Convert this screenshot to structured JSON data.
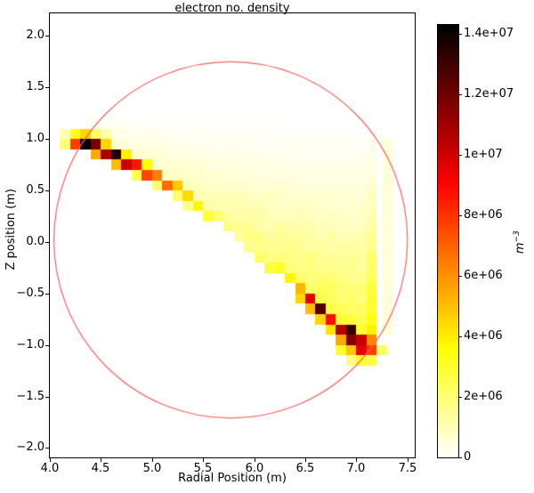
{
  "chart_data": {
    "type": "heatmap",
    "title": "electron no. density",
    "xlabel": "Radial Position (m)",
    "ylabel": "Z position (m)",
    "xlim": [
      4.0,
      7.58
    ],
    "ylim": [
      -2.1,
      2.22
    ],
    "grid": false,
    "xticks": [
      {
        "v": 4.0,
        "label": "4.0"
      },
      {
        "v": 4.5,
        "label": "4.5"
      },
      {
        "v": 5.0,
        "label": "5.0"
      },
      {
        "v": 5.5,
        "label": "5.5"
      },
      {
        "v": 6.0,
        "label": "6.0"
      },
      {
        "v": 6.5,
        "label": "6.5"
      },
      {
        "v": 7.0,
        "label": "7.0"
      },
      {
        "v": 7.5,
        "label": "7.5"
      }
    ],
    "yticks": [
      {
        "v": -2.0,
        "label": "−2.0"
      },
      {
        "v": -1.5,
        "label": "−1.5"
      },
      {
        "v": -1.0,
        "label": "−1.0"
      },
      {
        "v": -0.5,
        "label": "−0.5"
      },
      {
        "v": 0.0,
        "label": "0.0"
      },
      {
        "v": 0.5,
        "label": "0.5"
      },
      {
        "v": 1.0,
        "label": "1.0"
      },
      {
        "v": 1.5,
        "label": "1.5"
      },
      {
        "v": 2.0,
        "label": "2.0"
      }
    ],
    "colormap": "hot_r",
    "vmin": 0,
    "vmax": 14300000,
    "colorbar": {
      "ticks": [
        {
          "v": 0,
          "label": "0"
        },
        {
          "v": 2000000,
          "label": "2e+06"
        },
        {
          "v": 4000000,
          "label": "4e+06"
        },
        {
          "v": 6000000,
          "label": "6e+06"
        },
        {
          "v": 8000000,
          "label": "8e+06"
        },
        {
          "v": 10000000,
          "label": "1e+07"
        },
        {
          "v": 12000000,
          "label": "1.2e+07"
        },
        {
          "v": 14000000,
          "label": "1.4e+07"
        }
      ],
      "unit_base": "m",
      "unit_exp": "−3"
    },
    "vessel_circle": {
      "center_r": 5.77,
      "center_z": 0.02,
      "radius": 1.73,
      "color": "#f46464"
    },
    "cell_size": 0.1,
    "value_unit": 1000000,
    "beam_band_cells": [
      [
        4.15,
        1.05,
        1.1
      ],
      [
        4.25,
        1.05,
        3.2
      ],
      [
        4.35,
        1.05,
        4.5
      ],
      [
        4.45,
        1.05,
        2.2
      ],
      [
        4.55,
        1.05,
        1.2
      ],
      [
        4.15,
        0.95,
        2.0
      ],
      [
        4.25,
        0.95,
        7.8
      ],
      [
        4.35,
        0.95,
        14.2
      ],
      [
        4.45,
        0.95,
        11.8
      ],
      [
        4.55,
        0.95,
        4.5
      ],
      [
        4.45,
        0.85,
        5.5
      ],
      [
        4.55,
        0.85,
        10.8
      ],
      [
        4.65,
        0.85,
        13.6
      ],
      [
        4.75,
        0.85,
        4.0
      ],
      [
        4.65,
        0.75,
        5.0
      ],
      [
        4.75,
        0.75,
        10.2
      ],
      [
        4.85,
        0.75,
        8.6
      ],
      [
        4.95,
        0.75,
        3.5
      ],
      [
        4.85,
        0.65,
        2.5
      ],
      [
        4.95,
        0.65,
        7.6
      ],
      [
        5.05,
        0.65,
        6.4
      ],
      [
        5.05,
        0.55,
        2.0
      ],
      [
        5.15,
        0.55,
        6.8
      ],
      [
        5.25,
        0.55,
        4.8
      ],
      [
        5.25,
        0.45,
        2.0
      ],
      [
        5.35,
        0.45,
        4.4
      ],
      [
        5.35,
        0.35,
        1.6
      ],
      [
        5.45,
        0.35,
        3.8
      ],
      [
        5.55,
        0.25,
        2.8
      ],
      [
        5.65,
        0.25,
        2.0
      ],
      [
        5.75,
        0.15,
        1.7
      ],
      [
        5.85,
        0.05,
        1.4
      ],
      [
        5.95,
        -0.05,
        1.6
      ],
      [
        6.05,
        -0.15,
        2.2
      ],
      [
        6.15,
        -0.25,
        2.7
      ],
      [
        6.25,
        -0.25,
        3.1
      ],
      [
        6.35,
        -0.35,
        3.8
      ],
      [
        6.45,
        -0.45,
        5.2
      ],
      [
        6.45,
        -0.55,
        4.5
      ],
      [
        6.55,
        -0.55,
        9.6
      ],
      [
        6.55,
        -0.65,
        5.0
      ],
      [
        6.65,
        -0.65,
        12.6
      ],
      [
        6.65,
        -0.75,
        4.5
      ],
      [
        6.75,
        -0.75,
        8.8
      ],
      [
        6.75,
        -0.85,
        4.2
      ],
      [
        6.85,
        -0.85,
        10.6
      ],
      [
        6.95,
        -0.85,
        13.2
      ],
      [
        6.85,
        -0.95,
        5.5
      ],
      [
        6.95,
        -0.95,
        11.6
      ],
      [
        7.05,
        -0.95,
        10.2
      ],
      [
        7.15,
        -0.95,
        6.2
      ],
      [
        6.85,
        -1.05,
        3.0
      ],
      [
        6.95,
        -1.05,
        4.8
      ],
      [
        7.05,
        -1.05,
        9.6
      ],
      [
        7.15,
        -1.05,
        7.8
      ],
      [
        7.25,
        -1.05,
        2.2
      ],
      [
        6.95,
        -1.15,
        1.8
      ],
      [
        7.05,
        -1.15,
        3.0
      ],
      [
        7.15,
        -1.15,
        2.6
      ]
    ],
    "diffuse_fan": {
      "z_top": 1.3,
      "peak": 3.0,
      "power": 1.7,
      "r_factor_min": 0.35,
      "line": [
        [
          4.35,
          0.95
        ],
        [
          7.15,
          -1.05
        ]
      ],
      "r_min": 4.25,
      "r_max": 7.15,
      "z_min": -1.25,
      "z_max": 1.25,
      "clip_radius": 1.8,
      "edge_boost": 1.5,
      "jitter": 0.12
    },
    "edge_column": {
      "r_center": 7.3,
      "z_abs_max": 1.15,
      "value": 0.5,
      "fade_start": 0.9
    }
  }
}
